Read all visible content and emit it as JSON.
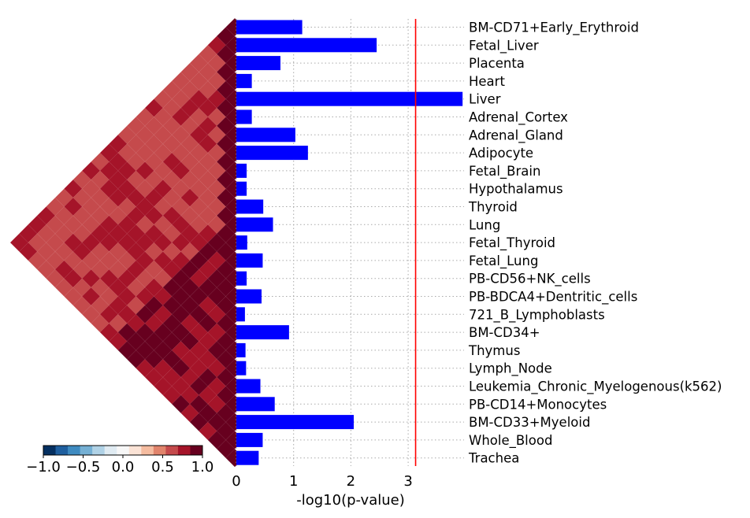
{
  "chart_data": [
    {
      "type": "bar",
      "orientation": "horizontal",
      "categories": [
        "BM-CD71+Early_Erythroid",
        "Fetal_Liver",
        "Placenta",
        "Heart",
        "Liver",
        "Adrenal_Cortex",
        "Adrenal_Gland",
        "Adipocyte",
        "Fetal_Brain",
        "Hypothalamus",
        "Thyroid",
        "Lung",
        "Fetal_Thyroid",
        "Fetal_Lung",
        "PB-CD56+NK_cells",
        "PB-BDCA4+Dentritic_cells",
        "721_B_Lymphoblasts",
        "BM-CD34+",
        "Thymus",
        "Lymph_Node",
        "Leukemia_Chronic_Myelogenous(k562)",
        "PB-CD14+Monocytes",
        "BM-CD33+Myeloid",
        "Whole_Blood",
        "Trachea"
      ],
      "values": [
        1.15,
        2.45,
        0.77,
        0.27,
        3.95,
        0.27,
        1.03,
        1.25,
        0.18,
        0.18,
        0.47,
        0.64,
        0.19,
        0.46,
        0.18,
        0.44,
        0.15,
        0.92,
        0.16,
        0.17,
        0.42,
        0.67,
        2.05,
        0.46,
        0.39
      ],
      "xlabel": "-log10(p-value)",
      "xticks": [
        0,
        1,
        2,
        3
      ],
      "xlim": [
        0,
        3.95
      ],
      "threshold": 3.13,
      "bar_color": "#0000ff",
      "threshold_color": "#ff0000",
      "grid": "vertical dotted"
    },
    {
      "type": "heatmap",
      "shape": "triangular correlation matrix rotated 45 degrees",
      "size": 25,
      "colorbar": {
        "ticks": [
          "−1.0",
          "−0.5",
          "0.0",
          "0.5",
          "1.0"
        ],
        "vmin": -1.0,
        "vmax": 1.0,
        "colors": [
          "#053061",
          "#1f5f9f",
          "#3f8bc1",
          "#75b0d4",
          "#b0d2e6",
          "#e0ebf2",
          "#f7f7f7",
          "#fbe3d6",
          "#f5bca0",
          "#e1846c",
          "#c54a4c",
          "#a51429",
          "#67001f"
        ]
      }
    }
  ]
}
